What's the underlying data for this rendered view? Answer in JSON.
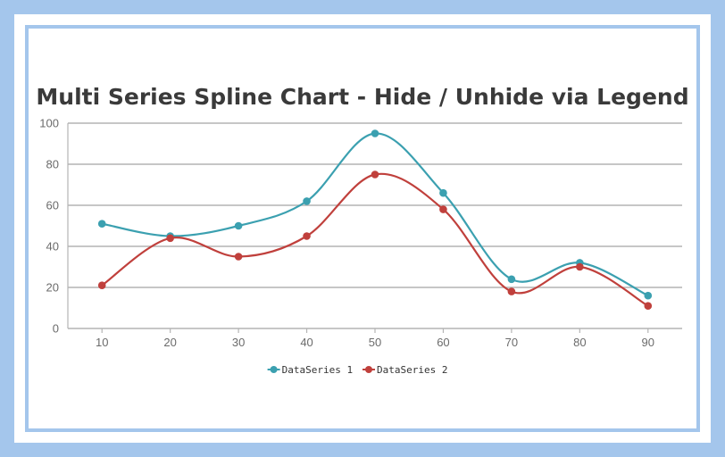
{
  "colors": {
    "page_background": "#a4c6ec",
    "frame_border": "#a4c6ec",
    "series_1": "#3ba0b0",
    "series_2": "#c0403c",
    "grid": "#b4b4b4"
  },
  "chart_data": {
    "type": "line",
    "title": "Multi Series Spline Chart - Hide / Unhide via Legend",
    "xlabel": "",
    "ylabel": "",
    "x": [
      10,
      20,
      30,
      40,
      50,
      60,
      70,
      80,
      90
    ],
    "x_ticks": [
      "10",
      "20",
      "30",
      "40",
      "50",
      "60",
      "70",
      "80",
      "90"
    ],
    "xlim": [
      5,
      95
    ],
    "ylim": [
      0,
      100
    ],
    "y_ticks": [
      "0",
      "20",
      "40",
      "60",
      "80",
      "100"
    ],
    "grid": true,
    "legend_position": "bottom-center",
    "series": [
      {
        "name": "DataSeries 1",
        "color": "#3ba0b0",
        "values": [
          51,
          45,
          50,
          62,
          95,
          66,
          24,
          32,
          16
        ]
      },
      {
        "name": "DataSeries 2",
        "color": "#c0403c",
        "values": [
          21,
          44,
          35,
          45,
          75,
          58,
          18,
          30,
          11
        ]
      }
    ]
  }
}
